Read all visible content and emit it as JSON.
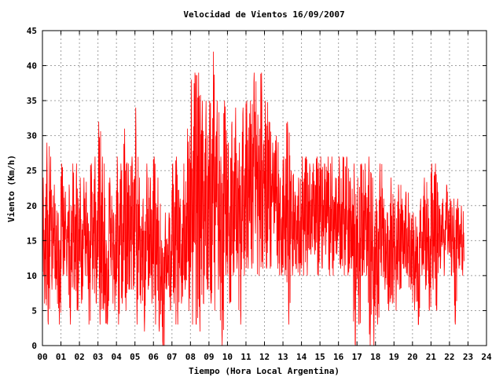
{
  "chart_data": {
    "type": "line",
    "title": "Velocidad de Vientos 16/09/2007",
    "xlabel": "Tiempo (Hora Local Argentina)",
    "ylabel": "Viento (Km/h)",
    "xlim": [
      0,
      24
    ],
    "ylim": [
      0,
      45
    ],
    "x_ticks": [
      "00",
      "01",
      "02",
      "03",
      "04",
      "05",
      "06",
      "07",
      "08",
      "09",
      "10",
      "11",
      "12",
      "13",
      "14",
      "15",
      "16",
      "17",
      "18",
      "19",
      "20",
      "21",
      "22",
      "23",
      "24"
    ],
    "y_ticks": [
      0,
      5,
      10,
      15,
      20,
      25,
      30,
      35,
      40,
      45
    ],
    "grid": true,
    "legend": "none",
    "series_color": "#ff0000",
    "series": [
      {
        "x": [
          0.0,
          0.2,
          0.4,
          0.6,
          0.8,
          1.0,
          1.2,
          1.4,
          1.6,
          1.8,
          2.0,
          2.2,
          2.4,
          2.6,
          2.8,
          3.0,
          3.2,
          3.4,
          3.6,
          3.8,
          4.0,
          4.2,
          4.4,
          4.6,
          4.8,
          5.0,
          5.2,
          5.4,
          5.6,
          5.8,
          6.0,
          6.2,
          6.4,
          6.6,
          6.8,
          7.0,
          7.2,
          7.4,
          7.6,
          7.8,
          8.0,
          8.2,
          8.4,
          8.6,
          8.8,
          9.0,
          9.2,
          9.4,
          9.6,
          9.8,
          10.0,
          10.2,
          10.4,
          10.6,
          10.8,
          11.0,
          11.2,
          11.4,
          11.6,
          11.8,
          12.0,
          12.2,
          12.4,
          12.6,
          12.8,
          13.0,
          13.2,
          13.4,
          13.6,
          13.8,
          14.0,
          14.2,
          14.4,
          14.6,
          14.8,
          15.0,
          15.2,
          15.4,
          15.6,
          15.8,
          16.0,
          16.2,
          16.4,
          16.6,
          16.8,
          17.0,
          17.2,
          17.4,
          17.6,
          17.8,
          18.0,
          18.2,
          18.4,
          18.6,
          18.8,
          19.0,
          19.2,
          19.4,
          19.6,
          19.8,
          20.0,
          20.2,
          20.4,
          20.6,
          20.8,
          21.0,
          21.2,
          21.4,
          21.6,
          21.8,
          22.0,
          22.2,
          22.4,
          22.6
        ],
        "min": [
          6,
          3,
          8,
          8,
          3,
          10,
          10,
          3,
          8,
          5,
          6,
          10,
          3,
          8,
          6,
          3,
          5,
          3,
          10,
          5,
          3,
          6,
          5,
          8,
          8,
          3,
          6,
          2,
          8,
          6,
          3,
          2,
          0,
          8,
          5,
          6,
          3,
          6,
          8,
          5,
          3,
          3,
          2,
          6,
          8,
          6,
          5,
          8,
          0,
          10,
          6,
          10,
          11,
          3,
          10,
          11,
          11,
          16,
          10,
          11,
          11,
          11,
          16,
          11,
          10,
          10,
          3,
          10,
          11,
          10,
          10,
          10,
          13,
          13,
          10,
          11,
          13,
          10,
          10,
          13,
          11,
          10,
          10,
          11,
          0,
          3,
          10,
          10,
          0,
          0,
          3,
          10,
          8,
          5,
          6,
          5,
          8,
          11,
          10,
          8,
          5,
          3,
          10,
          8,
          5,
          8,
          5,
          11,
          10,
          13,
          10,
          3,
          11,
          10
        ],
        "max": [
          24,
          29,
          27,
          23,
          19,
          26,
          22,
          23,
          26,
          26,
          24,
          24,
          19,
          26,
          27,
          32,
          27,
          15,
          24,
          19,
          27,
          26,
          31,
          26,
          27,
          34,
          24,
          21,
          26,
          24,
          27,
          24,
          15,
          19,
          19,
          26,
          27,
          21,
          26,
          31,
          38,
          39,
          39,
          35,
          35,
          35,
          42,
          35,
          27,
          35,
          29,
          32,
          34,
          29,
          34,
          35,
          35,
          39,
          33,
          39,
          35,
          32,
          29,
          30,
          24,
          27,
          32,
          25,
          22,
          24,
          27,
          27,
          26,
          26,
          27,
          27,
          26,
          27,
          27,
          24,
          27,
          27,
          27,
          24,
          26,
          24,
          26,
          26,
          27,
          24,
          21,
          26,
          21,
          19,
          24,
          21,
          23,
          21,
          22,
          19,
          19,
          17,
          21,
          24,
          21,
          26,
          26,
          20,
          21,
          23,
          21,
          21,
          21,
          20
        ]
      }
    ]
  }
}
